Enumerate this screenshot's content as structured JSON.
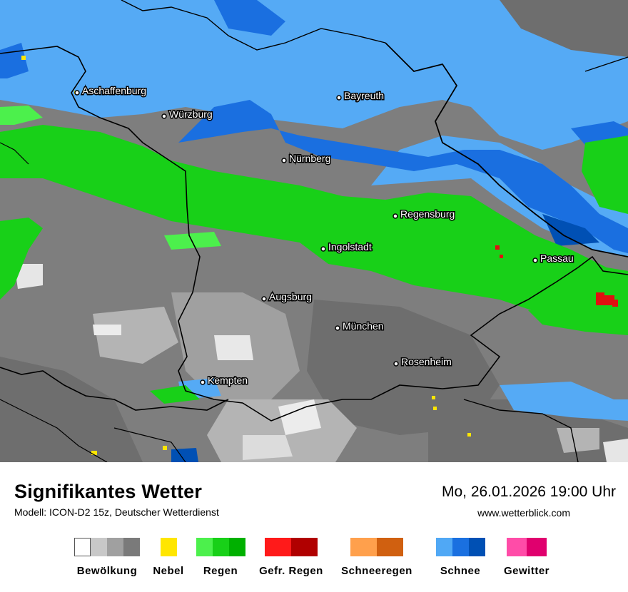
{
  "title": "Signifikantes Wetter",
  "model": "Modell: ICON-D2 15z, Deutscher Wetterdienst",
  "datetime": "Mo, 26.01.2026 19:00 Uhr",
  "website": "www.wetterblick.com",
  "cities": [
    {
      "name": "Aschaffenburg"
    },
    {
      "name": "Würzburg"
    },
    {
      "name": "Bayreuth"
    },
    {
      "name": "Nürnberg"
    },
    {
      "name": "Regensburg"
    },
    {
      "name": "Ingolstadt"
    },
    {
      "name": "Passau"
    },
    {
      "name": "Augsburg"
    },
    {
      "name": "München"
    },
    {
      "name": "Rosenheim"
    },
    {
      "name": "Kempten"
    }
  ],
  "legend": [
    {
      "label": "Bewölkung",
      "colors": [
        "#ffffff",
        "#c8c8c8",
        "#a0a0a0",
        "#7a7a7a"
      ]
    },
    {
      "label": "Nebel",
      "colors": [
        "#ffe600"
      ]
    },
    {
      "label": "Regen",
      "colors": [
        "#4cf04c",
        "#18d018",
        "#00b000"
      ]
    },
    {
      "label": "Gefr. Regen",
      "colors": [
        "#ff1a1a",
        "#b00000"
      ]
    },
    {
      "label": "Schneeregen",
      "colors": [
        "#ffa04c",
        "#d06010"
      ]
    },
    {
      "label": "Schnee",
      "colors": [
        "#50a8f5",
        "#1a70e0",
        "#0050b4"
      ]
    },
    {
      "label": "Gewitter",
      "colors": [
        "#ff4ca8",
        "#e0006e"
      ]
    }
  ]
}
